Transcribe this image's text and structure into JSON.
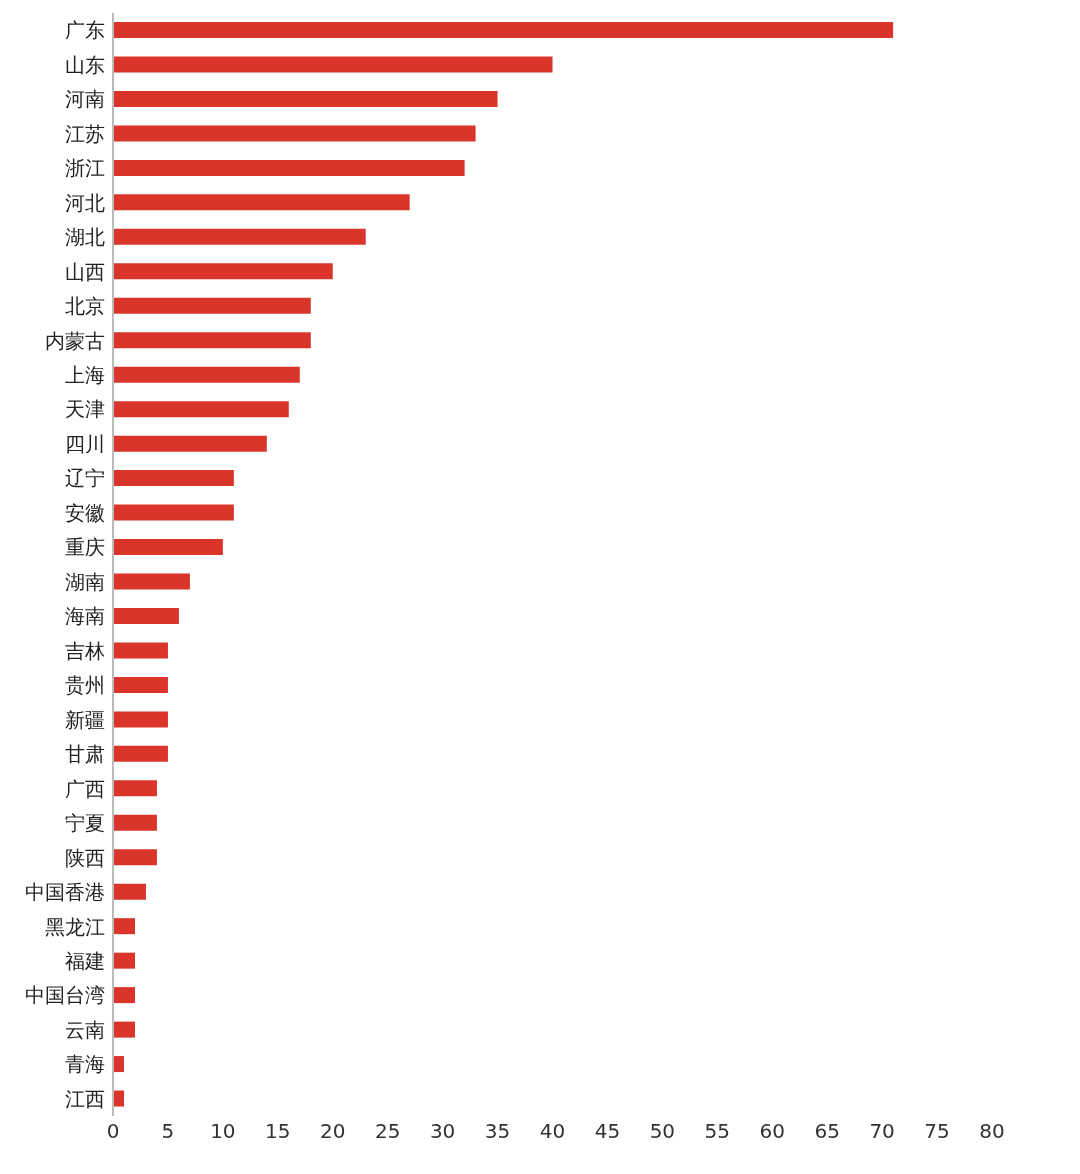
{
  "chart_data": {
    "type": "bar",
    "orientation": "horizontal",
    "categories": [
      "广东",
      "山东",
      "河南",
      "江苏",
      "浙江",
      "河北",
      "湖北",
      "山西",
      "北京",
      "内蒙古",
      "上海",
      "天津",
      "四川",
      "辽宁",
      "安徽",
      "重庆",
      "湖南",
      "海南",
      "吉林",
      "贵州",
      "新疆",
      "甘肃",
      "广西",
      "宁夏",
      "陕西",
      "中国香港",
      "黑龙江",
      "福建",
      "中国台湾",
      "云南",
      "青海",
      "江西"
    ],
    "values": [
      71,
      40,
      35,
      33,
      32,
      27,
      23,
      20,
      18,
      18,
      17,
      16,
      14,
      11,
      11,
      10,
      7,
      6,
      5,
      5,
      5,
      5,
      4,
      4,
      4,
      3,
      2,
      2,
      2,
      2,
      1,
      1
    ],
    "color": "#d9352b",
    "xlim": [
      0,
      80
    ],
    "xticks": [
      0,
      5,
      10,
      15,
      20,
      25,
      30,
      35,
      40,
      45,
      50,
      55,
      60,
      65,
      70,
      75,
      80
    ],
    "grid": false,
    "legend": false
  }
}
